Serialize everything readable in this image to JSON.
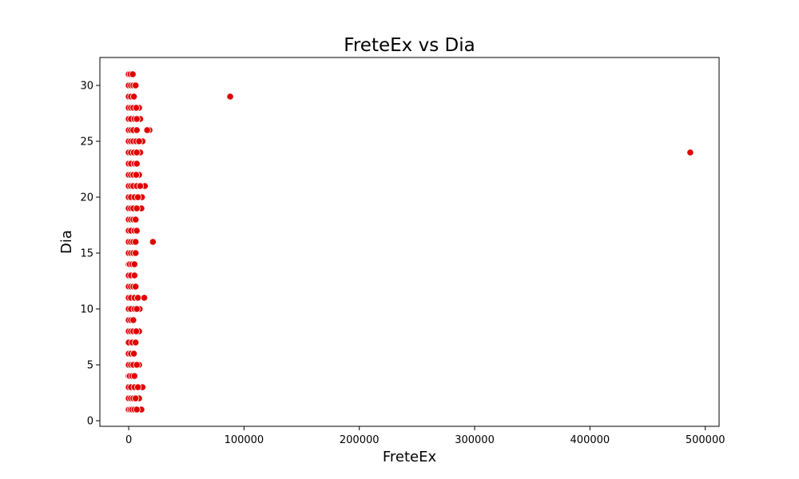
{
  "chart_data": {
    "type": "scatter",
    "title": "FreteEx vs Dia",
    "xlabel": "FreteEx",
    "ylabel": "Dia",
    "xlim": [
      -25000,
      512000
    ],
    "ylim": [
      -0.5,
      32.5
    ],
    "xticks": [
      0,
      100000,
      200000,
      300000,
      400000,
      500000
    ],
    "yticks": [
      0,
      5,
      10,
      15,
      20,
      25,
      30
    ],
    "grid": false,
    "marker_color": "#e00000",
    "marker_edge_color": "#ffffff",
    "points": [
      {
        "x": 88000,
        "y": 29
      },
      {
        "x": 487000,
        "y": 24
      },
      {
        "x": 21000,
        "y": 16
      },
      {
        "x": 18000,
        "y": 26
      },
      {
        "x": 16000,
        "y": 26
      },
      {
        "x": 14000,
        "y": 21
      },
      {
        "x": 13500,
        "y": 11
      },
      {
        "x": 12000,
        "y": 3
      },
      {
        "x": 11500,
        "y": 20
      },
      {
        "x": 11000,
        "y": 1
      },
      {
        "x": 11000,
        "y": 19
      },
      {
        "x": 12000,
        "y": 25
      },
      {
        "x": 10000,
        "y": 27
      },
      {
        "x": 10000,
        "y": 24
      },
      {
        "x": 9500,
        "y": 10
      },
      {
        "x": 9000,
        "y": 28
      },
      {
        "x": 9000,
        "y": 22
      },
      {
        "x": 9000,
        "y": 8
      },
      {
        "x": 9000,
        "y": 2
      },
      {
        "x": 9000,
        "y": 5
      },
      {
        "x": 0,
        "y": 1
      },
      {
        "x": 1500,
        "y": 1
      },
      {
        "x": 3000,
        "y": 1
      },
      {
        "x": 5000,
        "y": 1
      },
      {
        "x": 7000,
        "y": 1
      },
      {
        "x": 0,
        "y": 2
      },
      {
        "x": 2000,
        "y": 2
      },
      {
        "x": 4000,
        "y": 2
      },
      {
        "x": 6000,
        "y": 2
      },
      {
        "x": 0,
        "y": 3
      },
      {
        "x": 2000,
        "y": 3
      },
      {
        "x": 5000,
        "y": 3
      },
      {
        "x": 8000,
        "y": 3
      },
      {
        "x": 0,
        "y": 4
      },
      {
        "x": 1000,
        "y": 4
      },
      {
        "x": 3000,
        "y": 4
      },
      {
        "x": 5000,
        "y": 4
      },
      {
        "x": 0,
        "y": 5
      },
      {
        "x": 2000,
        "y": 5
      },
      {
        "x": 4000,
        "y": 5
      },
      {
        "x": 7000,
        "y": 5
      },
      {
        "x": 0,
        "y": 6
      },
      {
        "x": 2000,
        "y": 6
      },
      {
        "x": 4500,
        "y": 6
      },
      {
        "x": 0,
        "y": 7
      },
      {
        "x": 3000,
        "y": 7
      },
      {
        "x": 6000,
        "y": 7
      },
      {
        "x": 0,
        "y": 8
      },
      {
        "x": 2000,
        "y": 8
      },
      {
        "x": 4000,
        "y": 8
      },
      {
        "x": 6500,
        "y": 8
      },
      {
        "x": 0,
        "y": 9
      },
      {
        "x": 2000,
        "y": 9
      },
      {
        "x": 4000,
        "y": 9
      },
      {
        "x": 0,
        "y": 10
      },
      {
        "x": 2000,
        "y": 10
      },
      {
        "x": 5000,
        "y": 10
      },
      {
        "x": 7000,
        "y": 10
      },
      {
        "x": 0,
        "y": 11
      },
      {
        "x": 2000,
        "y": 11
      },
      {
        "x": 5000,
        "y": 11
      },
      {
        "x": 8000,
        "y": 11
      },
      {
        "x": 0,
        "y": 12
      },
      {
        "x": 2000,
        "y": 12
      },
      {
        "x": 4000,
        "y": 12
      },
      {
        "x": 6000,
        "y": 12
      },
      {
        "x": 0,
        "y": 13
      },
      {
        "x": 2000,
        "y": 13
      },
      {
        "x": 5000,
        "y": 13
      },
      {
        "x": 0,
        "y": 14
      },
      {
        "x": 1000,
        "y": 14
      },
      {
        "x": 3000,
        "y": 14
      },
      {
        "x": 5000,
        "y": 14
      },
      {
        "x": 0,
        "y": 15
      },
      {
        "x": 2000,
        "y": 15
      },
      {
        "x": 4000,
        "y": 15
      },
      {
        "x": 6000,
        "y": 15
      },
      {
        "x": 0,
        "y": 16
      },
      {
        "x": 2000,
        "y": 16
      },
      {
        "x": 4000,
        "y": 16
      },
      {
        "x": 6000,
        "y": 16
      },
      {
        "x": 0,
        "y": 17
      },
      {
        "x": 2000,
        "y": 17
      },
      {
        "x": 5000,
        "y": 17
      },
      {
        "x": 7000,
        "y": 17
      },
      {
        "x": 0,
        "y": 18
      },
      {
        "x": 2000,
        "y": 18
      },
      {
        "x": 4000,
        "y": 18
      },
      {
        "x": 6000,
        "y": 18
      },
      {
        "x": 0,
        "y": 19
      },
      {
        "x": 2000,
        "y": 19
      },
      {
        "x": 4000,
        "y": 19
      },
      {
        "x": 7000,
        "y": 19
      },
      {
        "x": 0,
        "y": 20
      },
      {
        "x": 2000,
        "y": 20
      },
      {
        "x": 5000,
        "y": 20
      },
      {
        "x": 8000,
        "y": 20
      },
      {
        "x": 0,
        "y": 21
      },
      {
        "x": 2000,
        "y": 21
      },
      {
        "x": 4000,
        "y": 21
      },
      {
        "x": 7000,
        "y": 21
      },
      {
        "x": 10000,
        "y": 21
      },
      {
        "x": 0,
        "y": 22
      },
      {
        "x": 2000,
        "y": 22
      },
      {
        "x": 4000,
        "y": 22
      },
      {
        "x": 6500,
        "y": 22
      },
      {
        "x": 0,
        "y": 23
      },
      {
        "x": 2000,
        "y": 23
      },
      {
        "x": 5000,
        "y": 23
      },
      {
        "x": 7000,
        "y": 23
      },
      {
        "x": 0,
        "y": 24
      },
      {
        "x": 2000,
        "y": 24
      },
      {
        "x": 4500,
        "y": 24
      },
      {
        "x": 7000,
        "y": 24
      },
      {
        "x": 0,
        "y": 25
      },
      {
        "x": 2000,
        "y": 25
      },
      {
        "x": 4000,
        "y": 25
      },
      {
        "x": 6500,
        "y": 25
      },
      {
        "x": 9000,
        "y": 25
      },
      {
        "x": 0,
        "y": 26
      },
      {
        "x": 2000,
        "y": 26
      },
      {
        "x": 4000,
        "y": 26
      },
      {
        "x": 7000,
        "y": 26
      },
      {
        "x": 0,
        "y": 27
      },
      {
        "x": 2000,
        "y": 27
      },
      {
        "x": 5000,
        "y": 27
      },
      {
        "x": 7000,
        "y": 27
      },
      {
        "x": 0,
        "y": 28
      },
      {
        "x": 2000,
        "y": 28
      },
      {
        "x": 4000,
        "y": 28
      },
      {
        "x": 6500,
        "y": 28
      },
      {
        "x": 0,
        "y": 29
      },
      {
        "x": 2000,
        "y": 29
      },
      {
        "x": 4500,
        "y": 29
      },
      {
        "x": 0,
        "y": 30
      },
      {
        "x": 2000,
        "y": 30
      },
      {
        "x": 4000,
        "y": 30
      },
      {
        "x": 6000,
        "y": 30
      },
      {
        "x": 0,
        "y": 31
      },
      {
        "x": 1500,
        "y": 31
      },
      {
        "x": 3500,
        "y": 31
      }
    ]
  }
}
